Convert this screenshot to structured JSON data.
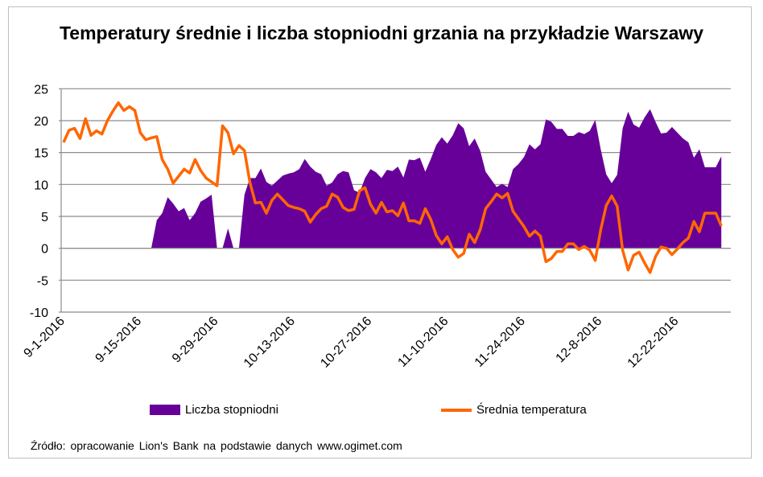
{
  "chart_data": {
    "type": "area+line",
    "title": "Temperatury średnie i liczba stopniodni grzania na przykładzie Warszawy",
    "source": "Źródło: opracowanie  Lion's  Bank na podstawie  danych  www.ogimet.com",
    "ylim": [
      -10,
      25
    ],
    "yticks": [
      -10,
      -5,
      0,
      5,
      10,
      15,
      20,
      25
    ],
    "xtick_labels": [
      "9-1-2016",
      "9-15-2016",
      "9-29-2016",
      "10-13-2016",
      "10-27-2016",
      "11-10-2016",
      "11-24-2016",
      "12-8-2016",
      "12-22-2016"
    ],
    "grid": true,
    "legend_placement": "bottom",
    "categories": [
      "9-1-2016",
      "9-2-2016",
      "9-3-2016",
      "9-4-2016",
      "9-5-2016",
      "9-6-2016",
      "9-7-2016",
      "9-8-2016",
      "9-9-2016",
      "9-10-2016",
      "9-11-2016",
      "9-12-2016",
      "9-13-2016",
      "9-14-2016",
      "9-15-2016",
      "9-16-2016",
      "9-17-2016",
      "9-18-2016",
      "9-19-2016",
      "9-20-2016",
      "9-21-2016",
      "9-22-2016",
      "9-23-2016",
      "9-24-2016",
      "9-25-2016",
      "9-26-2016",
      "9-27-2016",
      "9-28-2016",
      "9-29-2016",
      "9-30-2016",
      "10-1-2016",
      "10-2-2016",
      "10-3-2016",
      "10-4-2016",
      "10-5-2016",
      "10-6-2016",
      "10-7-2016",
      "10-8-2016",
      "10-9-2016",
      "10-10-2016",
      "10-11-2016",
      "10-12-2016",
      "10-13-2016",
      "10-14-2016",
      "10-15-2016",
      "10-16-2016",
      "10-17-2016",
      "10-18-2016",
      "10-19-2016",
      "10-20-2016",
      "10-21-2016",
      "10-22-2016",
      "10-23-2016",
      "10-24-2016",
      "10-25-2016",
      "10-26-2016",
      "10-27-2016",
      "10-28-2016",
      "10-29-2016",
      "10-30-2016",
      "10-31-2016",
      "11-1-2016",
      "11-2-2016",
      "11-3-2016",
      "11-4-2016",
      "11-5-2016",
      "11-6-2016",
      "11-7-2016",
      "11-8-2016",
      "11-9-2016",
      "11-10-2016",
      "11-11-2016",
      "11-12-2016",
      "11-13-2016",
      "11-14-2016",
      "11-15-2016",
      "11-16-2016",
      "11-17-2016",
      "11-18-2016",
      "11-19-2016",
      "11-20-2016",
      "11-21-2016",
      "11-22-2016",
      "11-23-2016",
      "11-24-2016",
      "11-25-2016",
      "11-26-2016",
      "11-27-2016",
      "11-28-2016",
      "11-29-2016",
      "11-30-2016",
      "12-1-2016",
      "12-2-2016",
      "12-3-2016",
      "12-4-2016",
      "12-5-2016",
      "12-6-2016",
      "12-7-2016",
      "12-8-2016",
      "12-9-2016",
      "12-10-2016",
      "12-11-2016",
      "12-12-2016",
      "12-13-2016",
      "12-14-2016",
      "12-15-2016",
      "12-16-2016",
      "12-17-2016",
      "12-18-2016",
      "12-19-2016",
      "12-20-2016",
      "12-21-2016",
      "12-22-2016",
      "12-23-2016",
      "12-24-2016",
      "12-25-2016",
      "12-26-2016",
      "12-27-2016",
      "12-28-2016",
      "12-29-2016",
      "12-30-2016"
    ],
    "series": [
      {
        "name": "Liczba stopniodni",
        "type": "area",
        "color": "#660099",
        "values": [
          0,
          0,
          0,
          0,
          0,
          0,
          0,
          0,
          0,
          0,
          0,
          0,
          0,
          0,
          0,
          0,
          0,
          4.4,
          5.5,
          8,
          7,
          5.8,
          6.3,
          4.4,
          5.5,
          7.3,
          7.8,
          8.4,
          0,
          0,
          3.1,
          0,
          0,
          8.4,
          11,
          11,
          12.5,
          10.4,
          9.8,
          10.6,
          11.4,
          11.7,
          11.9,
          12.4,
          14,
          12.8,
          12,
          11.6,
          9.8,
          10.3,
          11.6,
          12.1,
          11.9,
          9.1,
          8.7,
          11,
          12.4,
          11.9,
          11,
          12.3,
          12.1,
          12.8,
          11.1,
          13.9,
          13.8,
          14.2,
          12,
          14,
          16.2,
          17.4,
          16.4,
          17.7,
          19.6,
          18.8,
          16,
          17.2,
          15.3,
          12,
          10.8,
          9.6,
          10.1,
          9.6,
          12.4,
          13.2,
          14.3,
          16.3,
          15.5,
          16.3,
          20.2,
          19.8,
          18.7,
          18.7,
          17.6,
          17.6,
          18.2,
          17.9,
          18.4,
          20.1,
          15.5,
          11.6,
          10.2,
          11.5,
          18.8,
          21.4,
          19.4,
          18.9,
          20.5,
          21.8,
          19.8,
          18,
          18.1,
          19,
          18.1,
          17.2,
          16.6,
          14.2,
          15.5,
          12.7,
          12.7,
          12.7,
          14.4
        ]
      },
      {
        "name": "Średnia temperatura",
        "type": "line",
        "color": "#ff6600",
        "values": [
          16.6,
          18.5,
          18.8,
          17.2,
          20.3,
          17.7,
          18.4,
          17.9,
          20,
          21.5,
          22.8,
          21.6,
          22.2,
          21.6,
          18.1,
          17,
          17.3,
          17.5,
          13.9,
          12.4,
          10.2,
          11.3,
          12.4,
          11.8,
          13.9,
          12.2,
          11,
          10.4,
          9.8,
          19.2,
          18.1,
          14.8,
          16.1,
          15.3,
          10.3,
          7.1,
          7.2,
          5.5,
          7.5,
          8.5,
          7.6,
          6.7,
          6.4,
          6.2,
          5.8,
          4.1,
          5.3,
          6.2,
          6.6,
          8.5,
          8,
          6.4,
          5.9,
          6.1,
          9,
          9.5,
          6.9,
          5.5,
          7.2,
          5.7,
          5.9,
          5.1,
          7.1,
          4.3,
          4.3,
          3.9,
          6.2,
          4.5,
          2,
          0.7,
          1.8,
          -0.2,
          -1.4,
          -0.8,
          2.2,
          0.9,
          2.9,
          6.2,
          7.3,
          8.5,
          7.9,
          8.6,
          5.8,
          4.6,
          3.4,
          1.9,
          2.7,
          1.9,
          -2.1,
          -1.6,
          -0.5,
          -0.5,
          0.7,
          0.7,
          -0.2,
          0.3,
          -0.3,
          -1.9,
          2.9,
          6.7,
          8.2,
          6.6,
          -0.3,
          -3.4,
          -1.1,
          -0.6,
          -2.3,
          -3.8,
          -1.3,
          0.2,
          0,
          -1,
          -0.1,
          0.9,
          1.6,
          4.2,
          2.6,
          5.5,
          5.5,
          5.5,
          3.5
        ]
      }
    ]
  }
}
